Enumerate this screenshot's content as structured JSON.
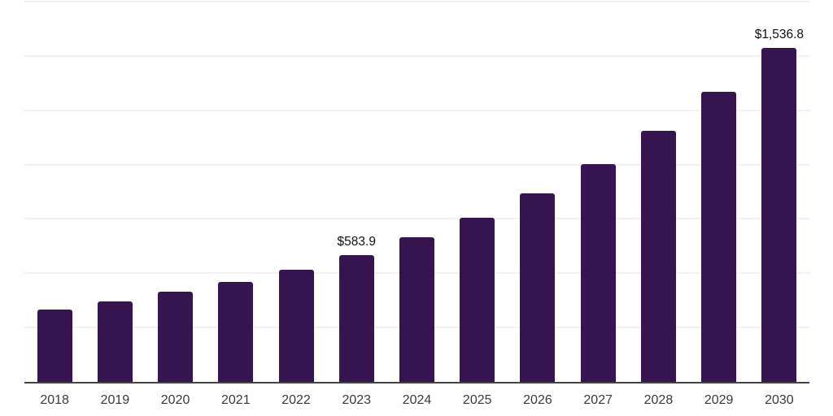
{
  "chart_data": {
    "type": "bar",
    "title": "",
    "xlabel": "",
    "ylabel": "",
    "categories": [
      "2018",
      "2019",
      "2020",
      "2021",
      "2022",
      "2023",
      "2024",
      "2025",
      "2026",
      "2027",
      "2028",
      "2029",
      "2030"
    ],
    "values": [
      332,
      369,
      414,
      459,
      515,
      583.9,
      664,
      757,
      869,
      1004,
      1157,
      1336,
      1536.8
    ],
    "data_labels": [
      "",
      "",
      "",
      "",
      "",
      "$583.9",
      "",
      "",
      "",
      "",
      "",
      "",
      "$1,536.8"
    ],
    "ylim": [
      0,
      1750
    ],
    "gridline_step": 250,
    "grid": "horizontal-only",
    "y_tick_labels_shown": false,
    "legend": "none",
    "bar_color": "#351450"
  },
  "colors": {
    "background": "#ffffff",
    "bar": "#351450",
    "gridline": "#f2f2f2",
    "axis_line": "#444444",
    "tick_label": "#3a3a3a",
    "value_label": "#111111"
  }
}
